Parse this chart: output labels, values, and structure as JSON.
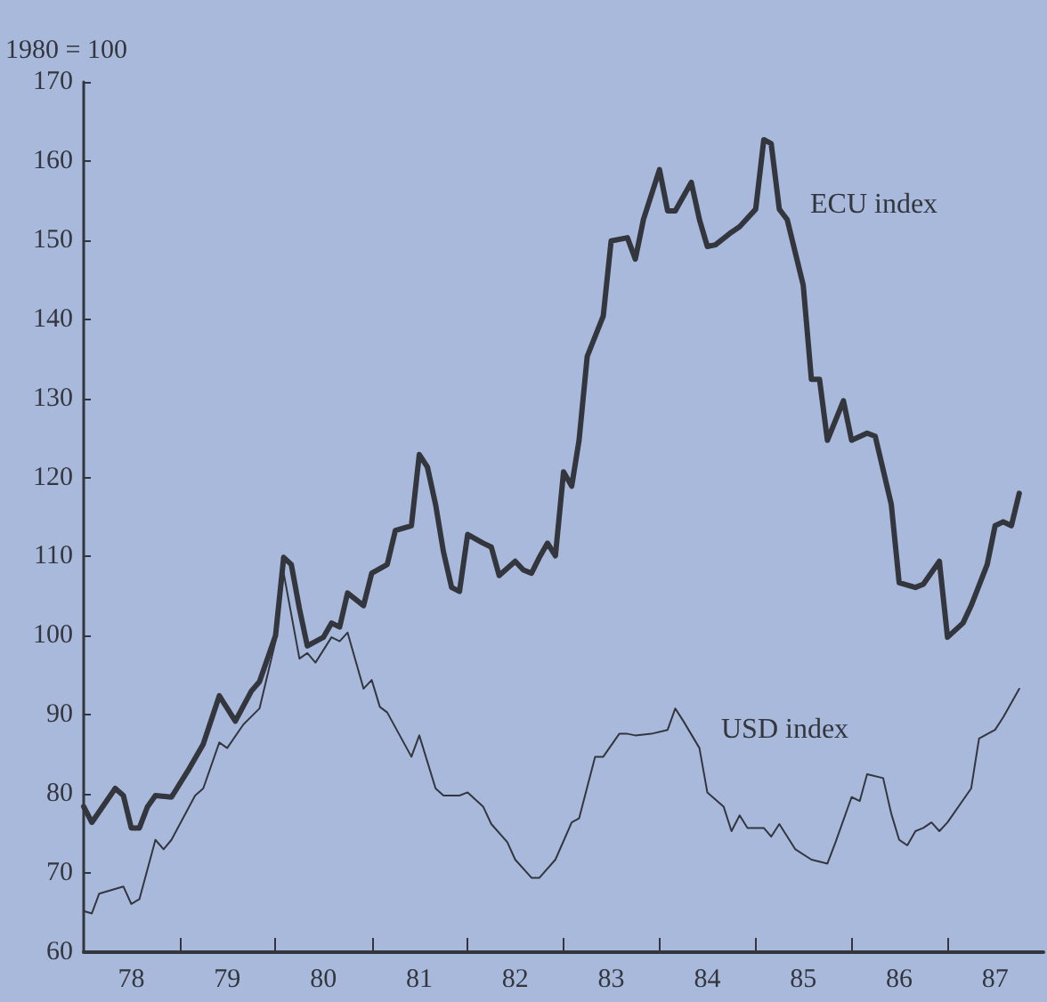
{
  "chart_data": {
    "type": "line",
    "ylabel": "1980 = 100",
    "xlim": [
      "1978-01",
      "1988-01"
    ],
    "ylim": [
      60,
      170
    ],
    "xticks": [
      {
        "value": "1978-07",
        "label": "78"
      },
      {
        "value": "1979-01",
        "label": null
      },
      {
        "value": "1979-07",
        "label": "79"
      },
      {
        "value": "1980-01",
        "label": null
      },
      {
        "value": "1980-07",
        "label": "80"
      },
      {
        "value": "1981-01",
        "label": null
      },
      {
        "value": "1981-07",
        "label": "81"
      },
      {
        "value": "1982-01",
        "label": null
      },
      {
        "value": "1982-07",
        "label": "82"
      },
      {
        "value": "1983-01",
        "label": null
      },
      {
        "value": "1983-07",
        "label": "83"
      },
      {
        "value": "1984-01",
        "label": null
      },
      {
        "value": "1984-07",
        "label": "84"
      },
      {
        "value": "1985-01",
        "label": null
      },
      {
        "value": "1985-07",
        "label": "85"
      },
      {
        "value": "1986-01",
        "label": null
      },
      {
        "value": "1986-07",
        "label": "86"
      },
      {
        "value": "1987-01",
        "label": null
      },
      {
        "value": "1987-07",
        "label": "87"
      }
    ],
    "yticks": [
      60,
      70,
      80,
      90,
      100,
      110,
      120,
      130,
      140,
      150,
      160,
      170
    ],
    "grid": false,
    "marker": "none",
    "line_style": "solid",
    "annotations": [
      "ECU index",
      "USD index"
    ],
    "series": [
      {
        "color": "#33363d",
        "x": [
          "1978-01",
          "1978-02",
          "1978-05",
          "1978-06",
          "1978-07",
          "1978-08",
          "1978-09",
          "1978-10",
          "1978-12",
          "1979-02",
          "1979-04",
          "1979-06",
          "1979-08",
          "1979-10",
          "1979-11",
          "1980-01",
          "1980-02",
          "1980-03",
          "1980-04",
          "1980-05",
          "1980-07",
          "1980-08",
          "1980-09",
          "1980-10",
          "1980-12",
          "1981-01",
          "1981-03",
          "1981-04",
          "1981-06",
          "1981-07",
          "1981-08",
          "1981-09",
          "1981-10",
          "1981-11",
          "1981-12",
          "1982-01",
          "1982-03",
          "1982-04",
          "1982-05",
          "1982-07",
          "1982-08",
          "1982-09",
          "1982-10",
          "1982-11",
          "1982-12",
          "1983-01",
          "1983-02",
          "1983-03",
          "1983-04",
          "1983-06",
          "1983-07",
          "1983-09",
          "1983-10",
          "1983-11",
          "1984-01",
          "1984-02",
          "1984-03",
          "1984-05",
          "1984-06",
          "1984-07",
          "1984-08",
          "1984-10",
          "1984-11",
          "1985-01",
          "1985-02",
          "1985-03",
          "1985-04",
          "1985-05",
          "1985-07",
          "1985-08",
          "1985-09",
          "1985-10",
          "1985-12",
          "1986-01",
          "1986-03",
          "1986-04",
          "1986-06",
          "1986-07",
          "1986-09",
          "1986-10",
          "1986-12",
          "1987-01",
          "1987-03",
          "1987-04",
          "1987-06",
          "1987-07",
          "1987-08",
          "1987-09",
          "1987-10"
        ],
        "values": [
          78.4,
          76.4,
          80.7,
          79.8,
          75.7,
          75.7,
          78.4,
          79.8,
          79.6,
          82.9,
          86.3,
          92.4,
          89.2,
          93.0,
          94.2,
          100,
          109.9,
          109,
          103.4,
          98.7,
          99.8,
          101.6,
          101.1,
          105.4,
          103.8,
          107.9,
          109,
          113.3,
          113.9,
          122.9,
          121.3,
          116.6,
          110.6,
          106.1,
          105.6,
          112.8,
          111.7,
          111.2,
          107.6,
          109.4,
          108.3,
          107.9,
          109.9,
          111.7,
          110.1,
          120.7,
          118.9,
          124.7,
          135.3,
          140.4,
          149.9,
          150.3,
          147.6,
          152.6,
          158.9,
          153.7,
          153.7,
          157.3,
          152.6,
          149.2,
          149.4,
          151,
          151.7,
          153.9,
          162.7,
          162.2,
          153.9,
          152.6,
          144.3,
          132.4,
          132.4,
          124.7,
          129.7,
          124.7,
          125.6,
          125.2,
          116.6,
          106.7,
          106.1,
          106.5,
          109.4,
          99.8,
          101.6,
          103.8,
          109,
          113.9,
          114.4,
          113.9,
          118
        ]
      },
      {
        "color": "#33363d",
        "x": [
          "1978-01",
          "1978-02",
          "1978-03",
          "1978-06",
          "1978-07",
          "1978-08",
          "1978-10",
          "1978-11",
          "1978-12",
          "1979-03",
          "1979-04",
          "1979-06",
          "1979-07",
          "1979-09",
          "1979-11",
          "1980-01",
          "1980-02",
          "1980-04",
          "1980-05",
          "1980-06",
          "1980-08",
          "1980-09",
          "1980-10",
          "1980-12",
          "1981-01",
          "1981-02",
          "1981-03",
          "1981-06",
          "1981-07",
          "1981-09",
          "1981-10",
          "1981-12",
          "1982-01",
          "1982-03",
          "1982-04",
          "1982-06",
          "1982-07",
          "1982-09",
          "1982-10",
          "1982-12",
          "1983-02",
          "1983-03",
          "1983-05",
          "1983-06",
          "1983-08",
          "1983-09",
          "1983-10",
          "1983-12",
          "1984-02",
          "1984-03",
          "1984-04",
          "1984-06",
          "1984-07",
          "1984-09",
          "1984-10",
          "1984-11",
          "1984-12",
          "1985-02",
          "1985-03",
          "1985-04",
          "1985-06",
          "1985-08",
          "1985-10",
          "1985-11",
          "1986-01",
          "1986-02",
          "1986-03",
          "1986-05",
          "1986-06",
          "1986-07",
          "1986-08",
          "1986-09",
          "1986-10",
          "1986-11",
          "1986-12",
          "1987-01",
          "1987-04",
          "1987-05",
          "1987-07",
          "1987-08",
          "1987-10"
        ],
        "values": [
          65.2,
          64.9,
          67.4,
          68.3,
          66.1,
          66.7,
          74.2,
          73.0,
          74.2,
          79.8,
          80.7,
          86.5,
          85.8,
          88.8,
          90.8,
          99.3,
          107.9,
          97.1,
          97.8,
          96.6,
          99.8,
          99.3,
          100.4,
          93.3,
          94.4,
          91,
          90.3,
          84.7,
          87.4,
          80.7,
          79.8,
          79.8,
          80.2,
          78.4,
          76.2,
          73.9,
          71.7,
          69.4,
          69.4,
          71.7,
          76.4,
          76.9,
          84.7,
          84.7,
          87.6,
          87.6,
          87.4,
          87.6,
          88.1,
          90.8,
          89.2,
          85.8,
          80.2,
          78.4,
          75.3,
          77.3,
          75.7,
          75.7,
          74.6,
          76.2,
          73.0,
          71.7,
          71.2,
          73.9,
          79.6,
          79.1,
          82.5,
          82.0,
          77.5,
          74.2,
          73.5,
          75.3,
          75.7,
          76.4,
          75.3,
          76.4,
          80.7,
          87.0,
          88.1,
          89.7,
          93.3
        ]
      }
    ]
  }
}
